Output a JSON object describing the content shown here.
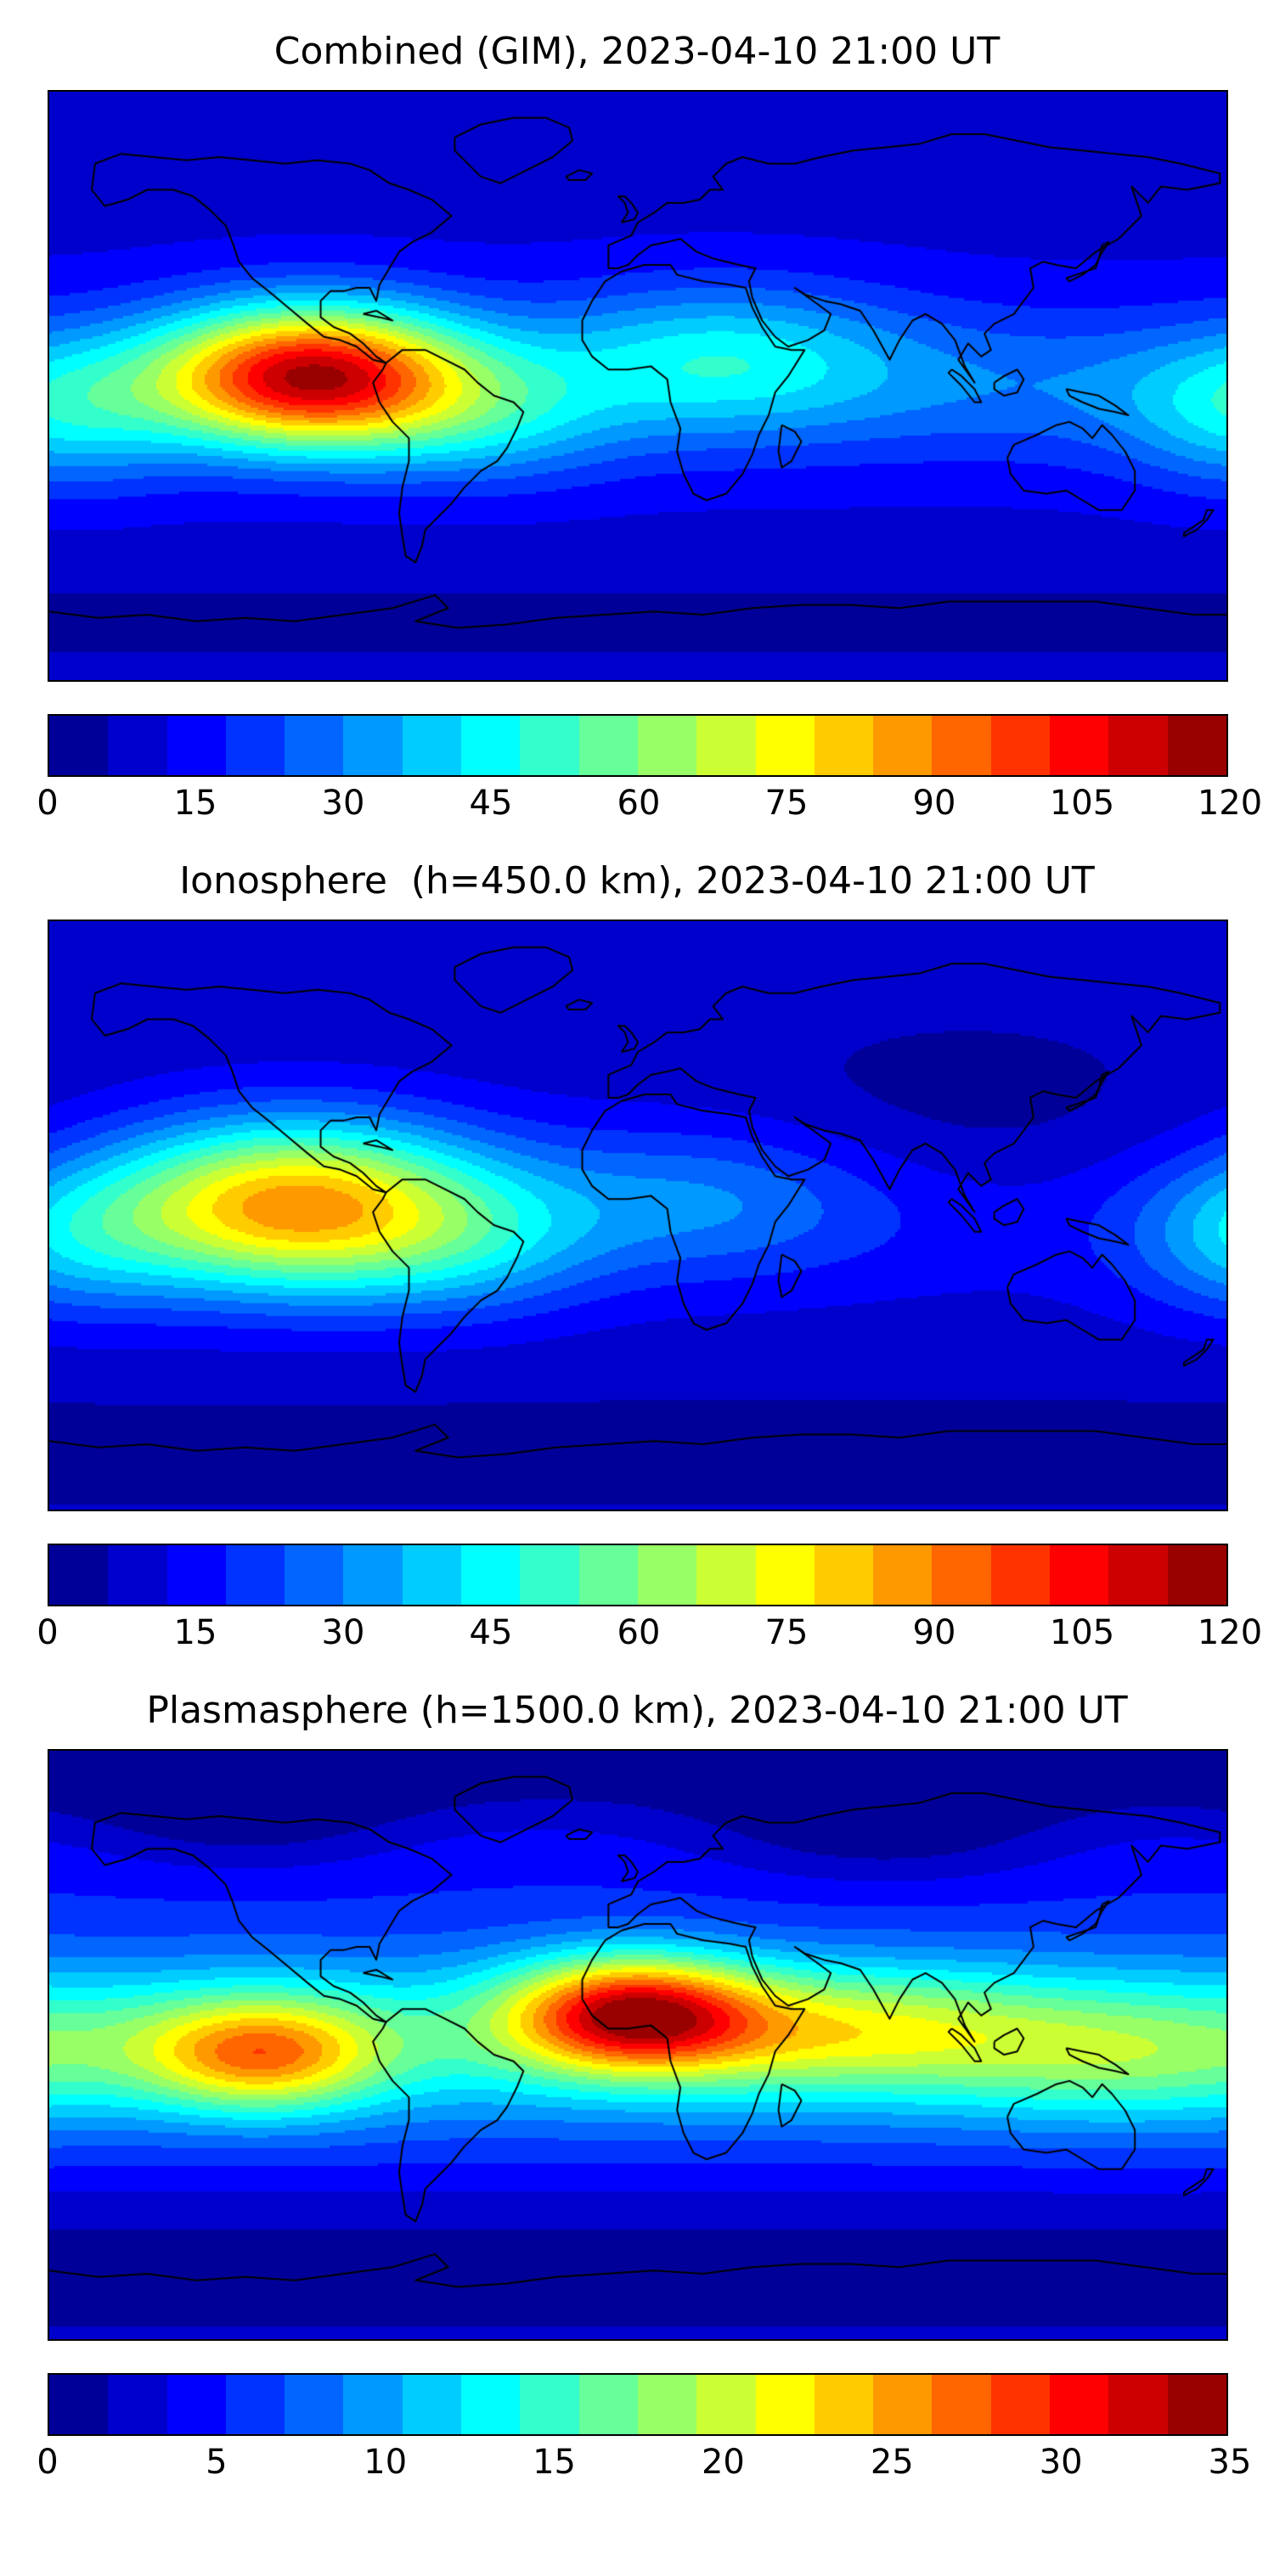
{
  "chart_data": [
    {
      "type": "heatmap",
      "title": "Combined (GIM), 2023-04-10 21:00 UT",
      "projection": "equirectangular",
      "lon_range": [
        -180,
        180
      ],
      "lat_range": [
        -90,
        90
      ],
      "value_range": [
        0,
        120
      ],
      "n_levels": 20,
      "colormap": "jet",
      "colorbar_ticks": [
        0,
        15,
        30,
        45,
        60,
        75,
        90,
        105,
        120
      ],
      "base_value": 10,
      "bands": [
        {
          "lat": 0,
          "amp": 10,
          "sigma_lat": 20
        },
        {
          "lat": -72,
          "amp": -5,
          "sigma_lat": 14
        },
        {
          "lat": 80,
          "amp": -3,
          "sigma_lat": 12
        }
      ],
      "hotspots": [
        {
          "lon": -100,
          "lat": 3,
          "amp": 95,
          "sigma_lon": 33,
          "sigma_lat": 15
        },
        {
          "lon": -45,
          "lat": -10,
          "amp": 18,
          "sigma_lon": 28,
          "sigma_lat": 14
        },
        {
          "lon": 25,
          "lat": 8,
          "amp": 28,
          "sigma_lon": 40,
          "sigma_lat": 16
        },
        {
          "lon": -175,
          "lat": -8,
          "amp": 22,
          "sigma_lon": 25,
          "sigma_lat": 16
        },
        {
          "lon": 130,
          "lat": 0,
          "amp": 8,
          "sigma_lon": 50,
          "sigma_lat": 15
        }
      ]
    },
    {
      "type": "heatmap",
      "title": "Ionosphere  (h=450.0 km), 2023-04-10 21:00 UT",
      "projection": "equirectangular",
      "lon_range": [
        -180,
        180
      ],
      "lat_range": [
        -90,
        90
      ],
      "value_range": [
        0,
        120
      ],
      "n_levels": 20,
      "colormap": "jet",
      "colorbar_ticks": [
        0,
        15,
        30,
        45,
        60,
        75,
        90,
        105,
        120
      ],
      "base_value": 8,
      "bands": [
        {
          "lat": 0,
          "amp": 8,
          "sigma_lat": 20
        },
        {
          "lat": -72,
          "amp": -4,
          "sigma_lat": 14
        }
      ],
      "hotspots": [
        {
          "lon": -105,
          "lat": 3,
          "amp": 72,
          "sigma_lon": 40,
          "sigma_lat": 18
        },
        {
          "lon": -50,
          "lat": -10,
          "amp": 14,
          "sigma_lon": 28,
          "sigma_lat": 15
        },
        {
          "lon": 20,
          "lat": 5,
          "amp": 16,
          "sigma_lon": 40,
          "sigma_lat": 16
        },
        {
          "lon": -175,
          "lat": -8,
          "amp": 18,
          "sigma_lon": 25,
          "sigma_lat": 16
        },
        {
          "lon": 100,
          "lat": 25,
          "amp": -6,
          "sigma_lon": 50,
          "sigma_lat": 22
        }
      ]
    },
    {
      "type": "heatmap",
      "title": "Plasmasphere (h=1500.0 km), 2023-04-10 21:00 UT",
      "projection": "equirectangular",
      "lon_range": [
        -180,
        180
      ],
      "lat_range": [
        -90,
        90
      ],
      "value_range": [
        0,
        35
      ],
      "n_levels": 20,
      "colormap": "jet",
      "colorbar_ticks": [
        0,
        5,
        10,
        15,
        20,
        25,
        30,
        35
      ],
      "base_value": 5,
      "bands": [
        {
          "lat": 2,
          "amp": 9,
          "sigma_lat": 18
        },
        {
          "lat": -78,
          "amp": -4,
          "sigma_lat": 12
        },
        {
          "lat": 84,
          "amp": -4,
          "sigma_lat": 12
        },
        {
          "lat": -55,
          "amp": -2.5,
          "sigma_lat": 12
        }
      ],
      "hotspots": [
        {
          "lon": -2,
          "lat": 10,
          "amp": 20,
          "sigma_lon": 26,
          "sigma_lat": 12
        },
        {
          "lon": -115,
          "lat": -3,
          "amp": 14,
          "sigma_lon": 25,
          "sigma_lat": 12
        },
        {
          "lon": 60,
          "lat": 5,
          "amp": 8,
          "sigma_lon": 45,
          "sigma_lat": 13
        },
        {
          "lon": 150,
          "lat": -5,
          "amp": 5,
          "sigma_lon": 40,
          "sigma_lat": 14
        },
        {
          "lon": 75,
          "lat": 66,
          "amp": -4,
          "sigma_lon": 40,
          "sigma_lat": 12
        },
        {
          "lon": -120,
          "lat": 70,
          "amp": -3.5,
          "sigma_lon": 35,
          "sigma_lat": 12
        }
      ]
    }
  ]
}
